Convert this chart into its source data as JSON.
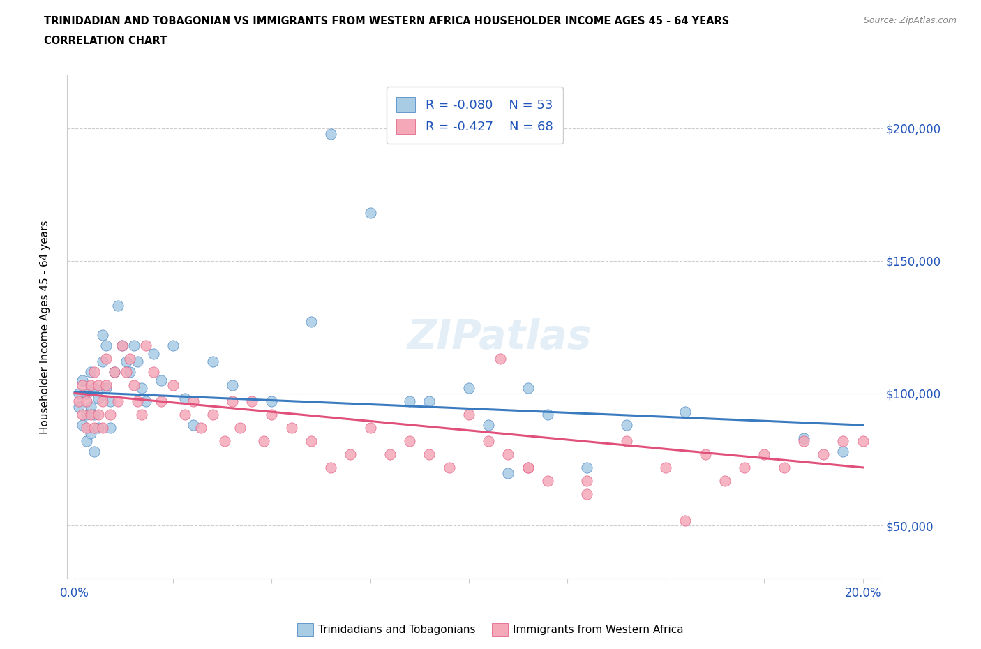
{
  "title_line1": "TRINIDADIAN AND TOBAGONIAN VS IMMIGRANTS FROM WESTERN AFRICA HOUSEHOLDER INCOME AGES 45 - 64 YEARS",
  "title_line2": "CORRELATION CHART",
  "source": "Source: ZipAtlas.com",
  "ylabel": "Householder Income Ages 45 - 64 years",
  "xlim": [
    -0.002,
    0.205
  ],
  "ylim": [
    30000,
    220000
  ],
  "ytick_positions": [
    50000,
    100000,
    150000,
    200000
  ],
  "ytick_labels": [
    "$50,000",
    "$100,000",
    "$150,000",
    "$200,000"
  ],
  "blue_R": -0.08,
  "blue_N": 53,
  "pink_R": -0.427,
  "pink_N": 68,
  "blue_color": "#a8cce4",
  "pink_color": "#f4a8b8",
  "blue_line_color": "#3a7abf",
  "pink_line_color": "#e0507a",
  "legend_R_color": "#2255bb",
  "blue_scatter_x": [
    0.001,
    0.001,
    0.002,
    0.002,
    0.003,
    0.003,
    0.003,
    0.004,
    0.004,
    0.004,
    0.005,
    0.005,
    0.005,
    0.006,
    0.006,
    0.007,
    0.007,
    0.008,
    0.008,
    0.009,
    0.009,
    0.01,
    0.011,
    0.012,
    0.013,
    0.014,
    0.015,
    0.016,
    0.017,
    0.018,
    0.02,
    0.022,
    0.025,
    0.028,
    0.03,
    0.035,
    0.04,
    0.05,
    0.06,
    0.065,
    0.075,
    0.085,
    0.09,
    0.1,
    0.105,
    0.11,
    0.115,
    0.12,
    0.13,
    0.14,
    0.155,
    0.185,
    0.195
  ],
  "blue_scatter_y": [
    100000,
    95000,
    105000,
    88000,
    100000,
    92000,
    82000,
    108000,
    95000,
    85000,
    102000,
    92000,
    78000,
    98000,
    87000,
    112000,
    122000,
    118000,
    102000,
    97000,
    87000,
    108000,
    133000,
    118000,
    112000,
    108000,
    118000,
    112000,
    102000,
    97000,
    115000,
    105000,
    118000,
    98000,
    88000,
    112000,
    103000,
    97000,
    127000,
    198000,
    168000,
    97000,
    97000,
    102000,
    88000,
    70000,
    102000,
    92000,
    72000,
    88000,
    93000,
    83000,
    78000
  ],
  "pink_scatter_x": [
    0.001,
    0.002,
    0.002,
    0.003,
    0.003,
    0.004,
    0.004,
    0.005,
    0.005,
    0.006,
    0.006,
    0.007,
    0.007,
    0.008,
    0.008,
    0.009,
    0.01,
    0.011,
    0.012,
    0.013,
    0.014,
    0.015,
    0.016,
    0.017,
    0.018,
    0.02,
    0.022,
    0.025,
    0.028,
    0.03,
    0.032,
    0.035,
    0.038,
    0.04,
    0.042,
    0.045,
    0.048,
    0.05,
    0.055,
    0.06,
    0.065,
    0.07,
    0.075,
    0.08,
    0.085,
    0.09,
    0.095,
    0.1,
    0.105,
    0.11,
    0.115,
    0.12,
    0.13,
    0.14,
    0.15,
    0.16,
    0.165,
    0.17,
    0.175,
    0.18,
    0.185,
    0.19,
    0.195,
    0.2,
    0.155,
    0.108,
    0.115,
    0.13
  ],
  "pink_scatter_y": [
    97000,
    103000,
    92000,
    97000,
    87000,
    103000,
    92000,
    108000,
    87000,
    103000,
    92000,
    97000,
    87000,
    113000,
    103000,
    92000,
    108000,
    97000,
    118000,
    108000,
    113000,
    103000,
    97000,
    92000,
    118000,
    108000,
    97000,
    103000,
    92000,
    97000,
    87000,
    92000,
    82000,
    97000,
    87000,
    97000,
    82000,
    92000,
    87000,
    82000,
    72000,
    77000,
    87000,
    77000,
    82000,
    77000,
    72000,
    92000,
    82000,
    77000,
    72000,
    67000,
    62000,
    82000,
    72000,
    77000,
    67000,
    72000,
    77000,
    72000,
    82000,
    77000,
    82000,
    82000,
    52000,
    113000,
    72000,
    67000
  ]
}
